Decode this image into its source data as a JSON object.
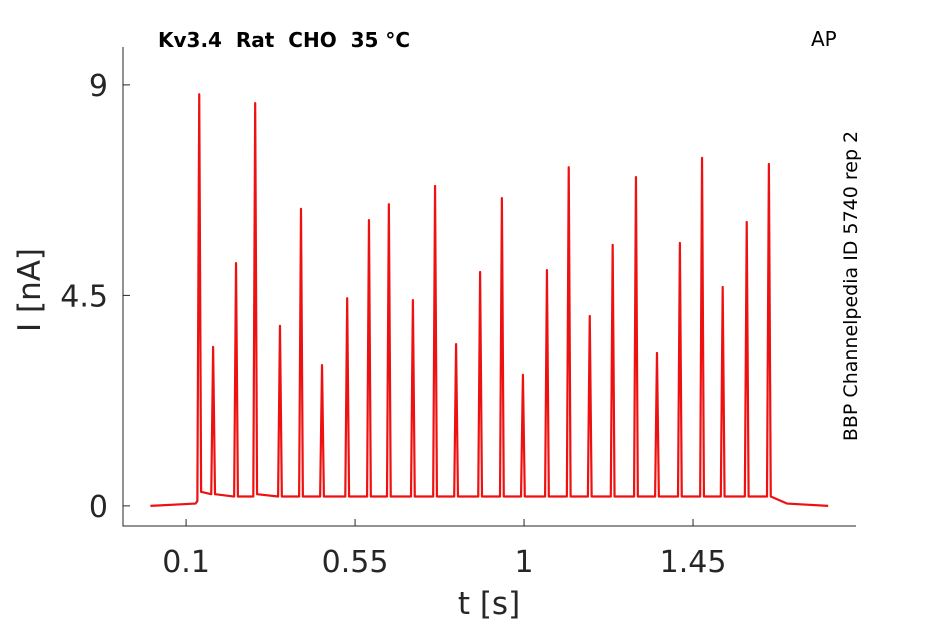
{
  "chart_data": {
    "type": "line",
    "title": "Kv3.4  Rat  CHO  35 °C",
    "annotation": "AP",
    "side_text": "BBP Channelpedia ID 5740 rep 2",
    "xlabel": "t [s]",
    "ylabel": "I [nA]",
    "color": "#ee1111",
    "xlim": [
      -0.068,
      1.884
    ],
    "ylim": [
      -0.43,
      9.81
    ],
    "xticks": [
      0.1,
      0.55,
      1,
      1.45
    ],
    "yticks": [
      0,
      4.5,
      9
    ],
    "x": [
      0.005,
      0.125,
      0.13,
      0.135,
      0.14,
      0.167,
      0.172,
      0.177,
      0.228,
      0.233,
      0.238,
      0.279,
      0.284,
      0.289,
      0.345,
      0.35,
      0.355,
      0.401,
      0.406,
      0.411,
      0.457,
      0.462,
      0.467,
      0.524,
      0.529,
      0.534,
      0.582,
      0.587,
      0.592,
      0.635,
      0.64,
      0.645,
      0.699,
      0.704,
      0.709,
      0.758,
      0.763,
      0.768,
      0.814,
      0.819,
      0.824,
      0.878,
      0.883,
      0.888,
      0.936,
      0.941,
      0.946,
      0.992,
      0.997,
      1.002,
      1.056,
      1.061,
      1.066,
      1.114,
      1.119,
      1.124,
      1.17,
      1.175,
      1.18,
      1.231,
      1.236,
      1.241,
      1.293,
      1.298,
      1.303,
      1.349,
      1.354,
      1.359,
      1.41,
      1.415,
      1.42,
      1.469,
      1.474,
      1.479,
      1.524,
      1.529,
      1.534,
      1.588,
      1.593,
      1.598,
      1.647,
      1.652,
      1.657,
      1.7,
      1.81
    ],
    "values": [
      0,
      0.05,
      0.1,
      8.8,
      0.3,
      0.25,
      3.4,
      0.25,
      0.2,
      5.19,
      0.2,
      0.2,
      8.61,
      0.25,
      0.2,
      3.85,
      0.2,
      0.2,
      6.35,
      0.2,
      0.2,
      3.01,
      0.2,
      0.2,
      4.44,
      0.2,
      0.2,
      6.11,
      0.2,
      0.2,
      6.45,
      0.2,
      0.2,
      4.4,
      0.2,
      0.2,
      6.84,
      0.2,
      0.2,
      3.46,
      0.2,
      0.2,
      5.0,
      0.2,
      0.2,
      6.58,
      0.2,
      0.2,
      2.8,
      0.2,
      0.2,
      5.04,
      0.2,
      0.2,
      7.24,
      0.2,
      0.2,
      4.06,
      0.2,
      0.2,
      5.58,
      0.2,
      0.2,
      7.03,
      0.2,
      0.2,
      3.27,
      0.2,
      0.2,
      5.62,
      0.2,
      0.2,
      7.44,
      0.2,
      0.2,
      4.68,
      0.2,
      0.2,
      6.07,
      0.2,
      0.2,
      7.31,
      0.2,
      0.05,
      0
    ]
  }
}
